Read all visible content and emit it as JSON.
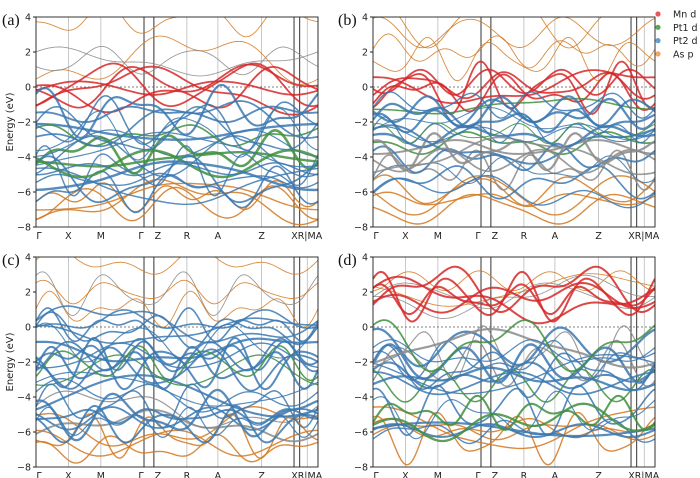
{
  "chart_data": [
    {
      "type": "line",
      "panel_label": "(a)",
      "ylabel": "Energy (eV)",
      "ylim": [
        -8,
        4
      ],
      "yticks": [
        4,
        2,
        0,
        -2,
        -4,
        -6,
        -8
      ],
      "xticks": [
        "Γ",
        "X",
        "M",
        "Γ",
        "Z",
        "R",
        "A",
        "Z",
        "XR|MA"
      ],
      "fermi_level": 0,
      "dominant_near_fermi": "Mn d"
    },
    {
      "type": "line",
      "panel_label": "(b)",
      "ylabel": "",
      "ylim": [
        -8,
        4
      ],
      "yticks": [
        4,
        2,
        0,
        -2,
        -4,
        -6,
        -8
      ],
      "xticks": [
        "Γ",
        "X",
        "M",
        "Γ",
        "Z",
        "R",
        "A",
        "Z",
        "XR|MA"
      ],
      "fermi_level": 0,
      "dominant_near_fermi": "Mn d"
    },
    {
      "type": "line",
      "panel_label": "(c)",
      "ylabel": "Energy (eV)",
      "ylim": [
        -8,
        4
      ],
      "yticks": [
        4,
        2,
        0,
        -2,
        -4,
        -6,
        -8
      ],
      "xticks": [
        "Γ",
        "X",
        "M",
        "Γ",
        "Z",
        "R",
        "A",
        "Z",
        "XR|MA"
      ],
      "fermi_level": 0,
      "dominant_near_fermi": "Pt2 d"
    },
    {
      "type": "line",
      "panel_label": "(d)",
      "ylabel": "",
      "ylim": [
        -8,
        4
      ],
      "yticks": [
        4,
        2,
        0,
        -2,
        -4,
        -6,
        -8
      ],
      "xticks": [
        "Γ",
        "X",
        "M",
        "Γ",
        "Z",
        "R",
        "A",
        "Z",
        "XR|MA"
      ],
      "fermi_level": 0,
      "dominant_near_fermi": "Pt2 d",
      "mn_band_center": 2
    }
  ],
  "legend": {
    "placement": "top-right",
    "items": [
      {
        "label": "Mn d",
        "color": "#e8585a"
      },
      {
        "label": "Pt1 d",
        "color": "#5aa85a"
      },
      {
        "label": "Pt2 d",
        "color": "#6a9ccc"
      },
      {
        "label": "As p",
        "color": "#f4a460"
      }
    ]
  },
  "colors": {
    "mn": "#d62728",
    "pt1": "#3f8f3f",
    "pt2": "#3a78b0",
    "as": "#d2781e",
    "mixed": "#8a8a8a"
  }
}
